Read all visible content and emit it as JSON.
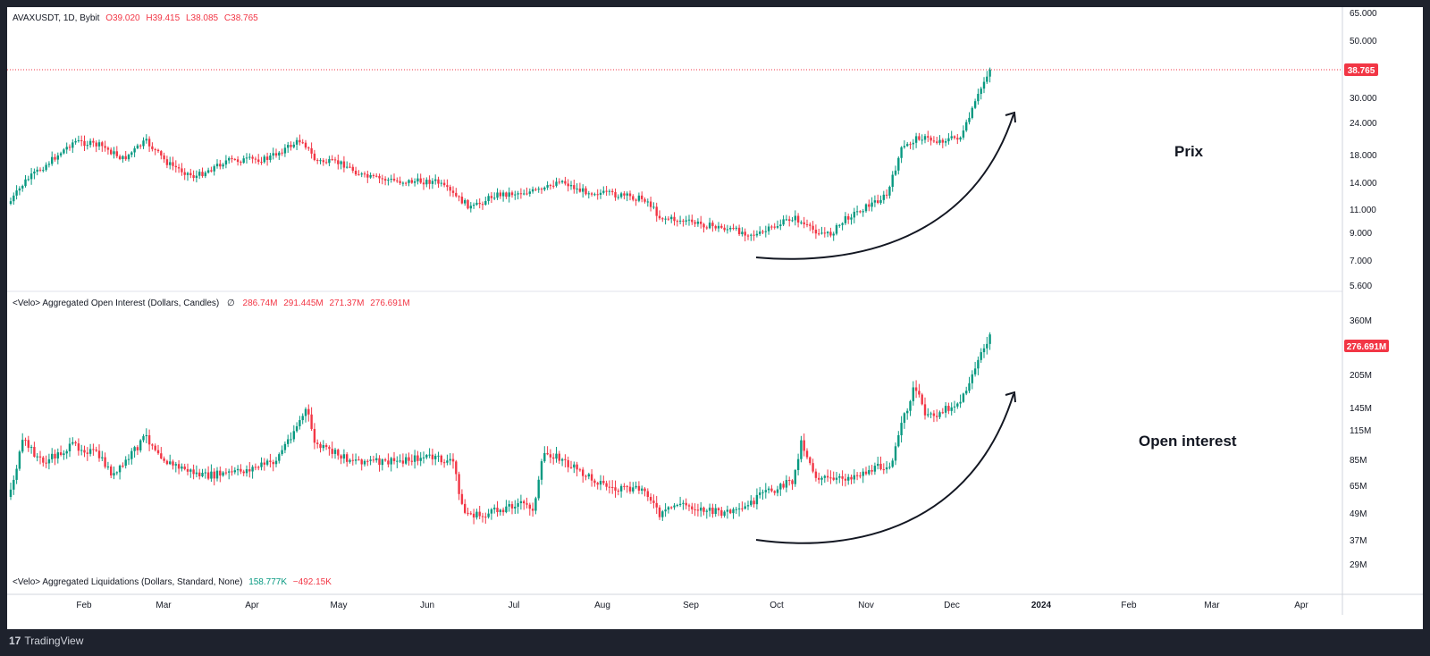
{
  "price_legend": {
    "symbol": "AVAXUSDT, 1D, Bybit",
    "open": "O39.020",
    "high": "H39.415",
    "low": "L38.085",
    "close": "C38.765"
  },
  "oi_legend": {
    "title": "<Velo> Aggregated Open Interest (Dollars, Candles)",
    "icon": "∅",
    "v1": "286.74M",
    "v2": "291.445M",
    "v3": "271.37M",
    "v4": "276.691M"
  },
  "liq_legend": {
    "title": "<Velo> Aggregated Liquidations (Dollars, Standard, None)",
    "v1": "158.777K",
    "v2": "−492.15K"
  },
  "annotations": {
    "price": "Prix",
    "oi": "Open interest"
  },
  "footer": {
    "brand": "TradingView",
    "logo": "17"
  },
  "colors": {
    "up": "#089981",
    "down": "#f23645",
    "frame": "#1e222d",
    "grid": "#f0f3fa"
  },
  "chart_data": [
    {
      "type": "candlestick",
      "title": "AVAXUSDT, 1D, Bybit",
      "scale": "log",
      "y_ticks": [
        "65.000",
        "50.000",
        "30.000",
        "24.000",
        "18.000",
        "14.000",
        "11.000",
        "9.000",
        "7.000",
        "5.600"
      ],
      "last_price_tag": "38.765",
      "ylim": [
        5.6,
        65
      ],
      "months": [
        "Feb",
        "Mar",
        "Apr",
        "May",
        "Jun",
        "Jul",
        "Aug",
        "Sep",
        "Oct",
        "Nov",
        "Dec",
        "2024",
        "Feb",
        "Mar",
        "Apr"
      ],
      "series": [
        {
          "name": "AVAXUSDT",
          "x": [
            "2023-01",
            "2023-02",
            "2023-03",
            "2023-04",
            "2023-05",
            "2023-06",
            "2023-07",
            "2023-08",
            "2023-09",
            "2023-10",
            "2023-11",
            "2023-12"
          ],
          "values": [
            12,
            20,
            16,
            19,
            15,
            12,
            14,
            12,
            9.5,
            9,
            14,
            38.765
          ]
        }
      ]
    },
    {
      "type": "candlestick",
      "title": "<Velo> Aggregated Open Interest (Dollars, Candles)",
      "scale": "log",
      "y_ticks": [
        "360M",
        "205M",
        "145M",
        "115M",
        "85M",
        "65M",
        "49M",
        "37M",
        "29M"
      ],
      "last_value_tag": "276.691M",
      "series": [
        {
          "name": "Open Interest",
          "x": [
            "2023-01",
            "2023-02",
            "2023-03",
            "2023-04",
            "2023-05",
            "2023-06",
            "2023-07",
            "2023-08",
            "2023-09",
            "2023-10",
            "2023-11",
            "2023-12"
          ],
          "values": [
            60,
            95,
            90,
            80,
            95,
            60,
            80,
            65,
            55,
            80,
            100,
            276.691
          ]
        }
      ]
    }
  ]
}
